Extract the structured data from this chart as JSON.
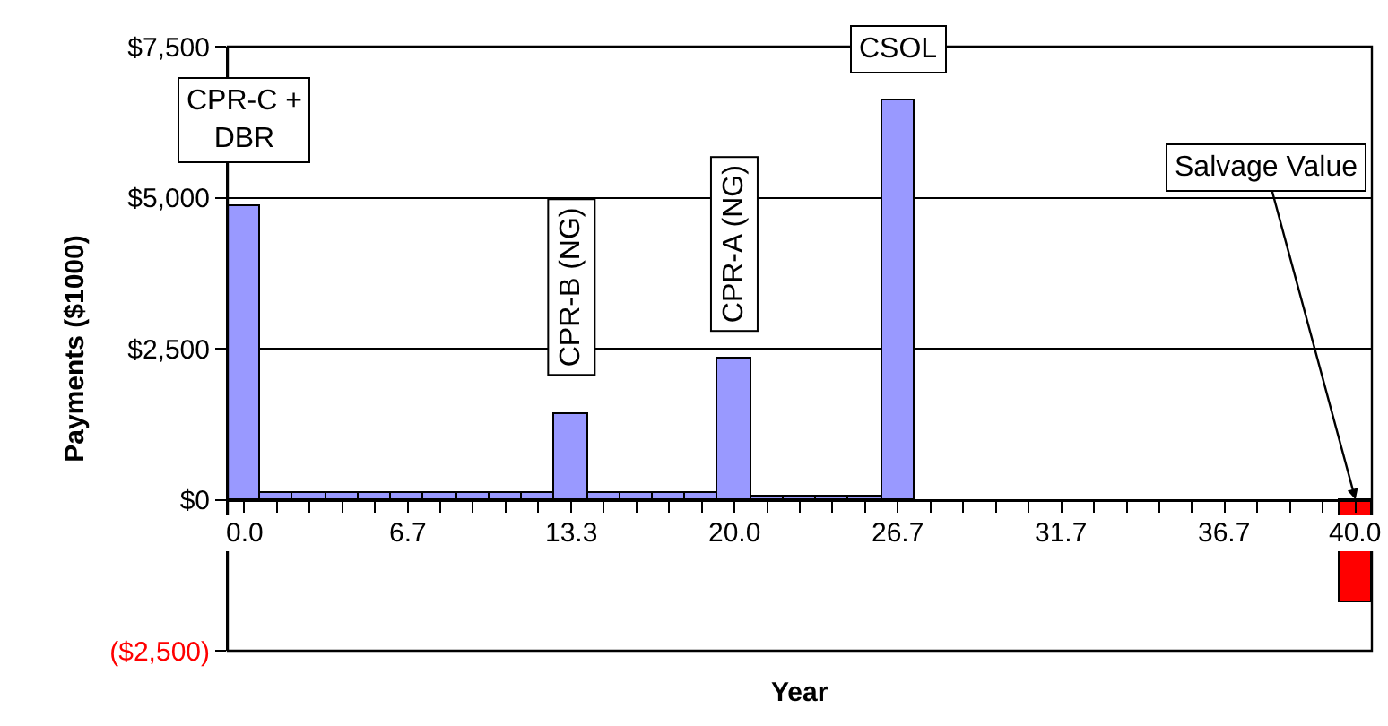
{
  "chart_data": {
    "type": "bar",
    "xlabel": "Year",
    "ylabel": "Payments ($1000)",
    "categories": [
      "0.0",
      null,
      null,
      null,
      null,
      "6.7",
      null,
      null,
      null,
      null,
      "13.3",
      null,
      null,
      null,
      null,
      "20.0",
      null,
      null,
      null,
      null,
      "26.7",
      null,
      null,
      null,
      null,
      "31.7",
      null,
      null,
      null,
      null,
      "36.7",
      null,
      null,
      null,
      "40.0"
    ],
    "values": [
      4850,
      100,
      100,
      100,
      100,
      100,
      100,
      100,
      100,
      100,
      1425,
      100,
      100,
      100,
      100,
      2350,
      50,
      50,
      50,
      50,
      6600,
      null,
      null,
      null,
      null,
      null,
      null,
      null,
      null,
      null,
      null,
      null,
      null,
      null,
      -1700
    ],
    "colors": [
      "#9999ff",
      "#9999ff",
      "#9999ff",
      "#9999ff",
      "#9999ff",
      "#9999ff",
      "#9999ff",
      "#9999ff",
      "#9999ff",
      "#9999ff",
      "#9999ff",
      "#9999ff",
      "#9999ff",
      "#9999ff",
      "#9999ff",
      "#9999ff",
      "#9999ff",
      "#9999ff",
      "#9999ff",
      "#9999ff",
      "#9999ff",
      "#9999ff",
      "#9999ff",
      "#9999ff",
      "#9999ff",
      "#9999ff",
      "#9999ff",
      "#9999ff",
      "#9999ff",
      "#9999ff",
      "#9999ff",
      "#9999ff",
      "#9999ff",
      "#9999ff",
      "#ff0000"
    ],
    "ylim": [
      -2500,
      7500
    ],
    "yticks": [
      {
        "value": 7500,
        "label": "$7,500"
      },
      {
        "value": 5000,
        "label": "$5,000"
      },
      {
        "value": 2500,
        "label": "$2,500"
      },
      {
        "value": 0,
        "label": "$0"
      },
      {
        "value": -2500,
        "label": "($2,500)"
      }
    ],
    "grid": "y",
    "legend": false,
    "annotations": [
      {
        "text": "CPR-C +\nDBR",
        "x": "0.0",
        "y": 4850
      },
      {
        "text": "CPR-B (NG)",
        "x": "13.3",
        "y": 1425
      },
      {
        "text": "CPR-A (NG)",
        "x": "20.0",
        "y": 2350
      },
      {
        "text": "CSOL",
        "x": "26.7",
        "y": 6600
      },
      {
        "text": "Salvage Value",
        "x": "40.0",
        "y": 0
      }
    ]
  }
}
